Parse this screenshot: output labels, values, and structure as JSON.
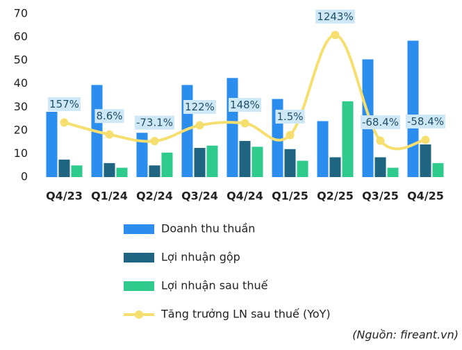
{
  "chart_data": {
    "type": "bar",
    "categories": [
      "Q4/23",
      "Q1/24",
      "Q2/24",
      "Q3/24",
      "Q4/24",
      "Q1/25",
      "Q2/25",
      "Q3/25",
      "Q4/25"
    ],
    "series": [
      {
        "name": "Doanh thu thuần",
        "color": "#2b8ded",
        "values": [
          28,
          39.5,
          19,
          39.5,
          42.5,
          33.5,
          24,
          50.5,
          58.5
        ]
      },
      {
        "name": "Lợi nhuận gộp",
        "color": "#1f6480",
        "values": [
          7.5,
          6,
          5,
          12.5,
          15.5,
          12,
          8.5,
          8.5,
          14
        ]
      },
      {
        "name": "Lợi nhuận sau thuế",
        "color": "#2ecb8c",
        "values": [
          5,
          4,
          10.5,
          13.5,
          13,
          7,
          32.5,
          4,
          6
        ]
      },
      {
        "name": "Tăng trưởng LN sau thuế (YoY)",
        "color": "#f6df6e",
        "type": "line",
        "axis": "y2",
        "values": [
          157,
          8.6,
          -73.1,
          122,
          148,
          1.5,
          1243,
          -68.4,
          -58.4
        ],
        "value_labels": [
          "157%",
          "8.6%",
          "-73.1%",
          "122%",
          "148%",
          "1.5%",
          "1243%",
          "-68.4%",
          "-58.4%"
        ]
      }
    ],
    "ylim": [
      0,
      70
    ],
    "yticks": [
      0,
      10,
      20,
      30,
      40,
      50,
      60,
      70
    ],
    "y2lim": [
      -520,
      1505
    ],
    "grid": false,
    "legend": "bottom",
    "source": "(Nguồn: fireant.vn)"
  }
}
